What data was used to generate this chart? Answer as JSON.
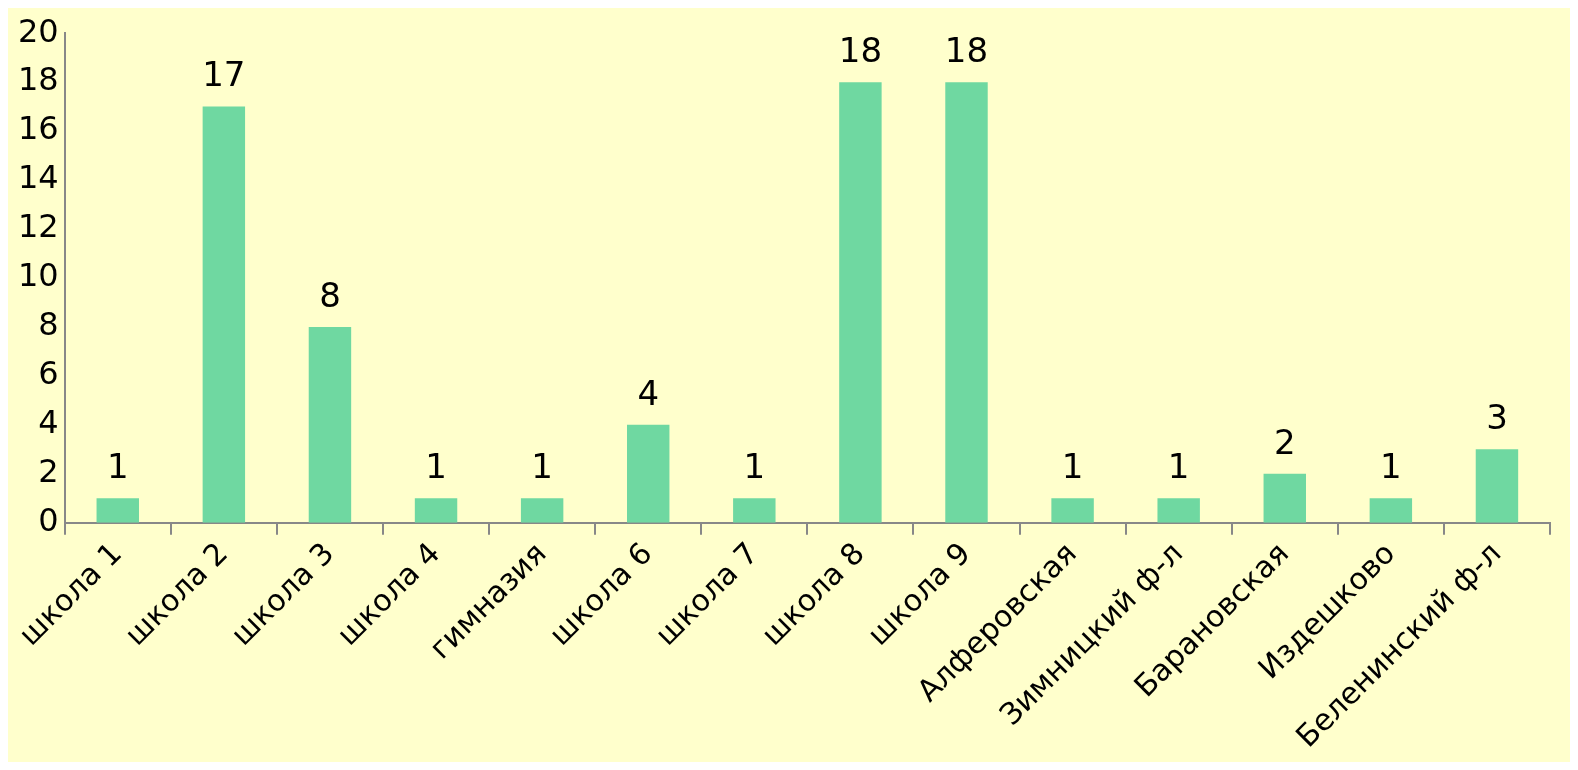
{
  "chart_data": {
    "type": "bar",
    "categories": [
      "школа 1",
      "школа 2",
      "школа 3",
      "школа 4",
      "гимназия",
      "школа 6",
      "школа 7",
      "школа 8",
      "школа 9",
      "Алферовская",
      "Зимницкий ф-л",
      "Барановская",
      "Издешково",
      "Беленинский ф-л"
    ],
    "values": [
      1,
      17,
      8,
      1,
      1,
      4,
      1,
      18,
      18,
      1,
      1,
      2,
      1,
      3
    ],
    "color": "#6fd8a1",
    "ylim": [
      0,
      20
    ],
    "yticks": [
      0,
      2,
      4,
      6,
      8,
      10,
      12,
      14,
      16,
      18,
      20
    ],
    "data_labels": true,
    "grid": false,
    "legend": false
  }
}
